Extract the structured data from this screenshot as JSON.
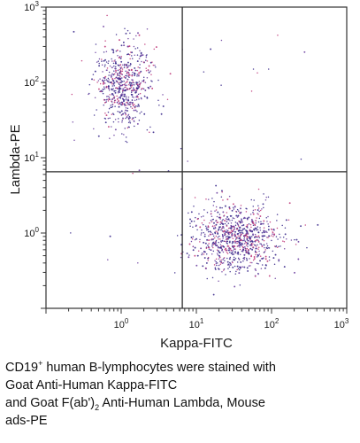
{
  "colors": {
    "frame": "#333333",
    "gate": "#2a2a2a",
    "dot_primary": "#3b2a8c",
    "dot_secondary": "#c0397a",
    "dot_tertiary": "#6b3fa0"
  },
  "chart_data": {
    "type": "scatter",
    "title": "",
    "xlabel": "Kappa-FITC",
    "ylabel": "Lambda-PE",
    "x_scale": "log",
    "y_scale": "log",
    "xlim": [
      0.1,
      1000
    ],
    "ylim": [
      0.1,
      1000
    ],
    "x_ticks": [
      {
        "value": 1,
        "base": "10",
        "exp": "0"
      },
      {
        "value": 10,
        "base": "10",
        "exp": "1"
      },
      {
        "value": 100,
        "base": "10",
        "exp": "2"
      },
      {
        "value": 1000,
        "base": "10",
        "exp": "3"
      }
    ],
    "y_ticks": [
      {
        "value": 1,
        "base": "10",
        "exp": "0"
      },
      {
        "value": 10,
        "base": "10",
        "exp": "1"
      },
      {
        "value": 100,
        "base": "10",
        "exp": "2"
      },
      {
        "value": 1000,
        "base": "10",
        "exp": "3"
      }
    ],
    "quadrant_gate": {
      "x": 6.5,
      "y": 6.5
    },
    "grid": false,
    "legend": "none",
    "populations": [
      {
        "x_center": 1.1,
        "y_center": 90,
        "x_spread_decades": 0.18,
        "y_spread_decades": 0.28,
        "count": 620
      },
      {
        "x_center": 35,
        "y_center": 0.85,
        "x_spread_decades": 0.28,
        "y_spread_decades": 0.22,
        "count": 900
      },
      {
        "x_center": 3,
        "y_center": 3,
        "x_spread_decades": 1.0,
        "y_spread_decades": 1.0,
        "count": 40
      }
    ]
  },
  "caption": {
    "line1_pre": "CD19",
    "line1_sup": "+",
    "line1_post": " human B-lymphocytes were stained with",
    "line2": "Goat Anti-Human Kappa-FITC",
    "line3_pre": "and Goat F(ab')",
    "line3_sub": "2",
    "line3_post": " Anti-Human Lambda, Mouse",
    "line4": "ads-PE"
  }
}
